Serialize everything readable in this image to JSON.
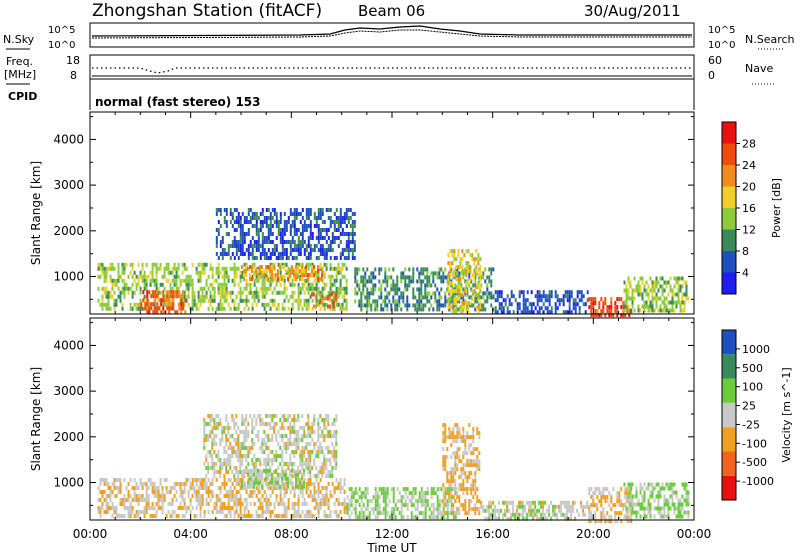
{
  "header": {
    "station": "Zhongshan Station (fitACF)",
    "beam": "Beam 06",
    "date": "30/Aug/2011"
  },
  "top_panels": {
    "nsky_label": "N.Sky",
    "nsearch_label": "N.Search",
    "noise_ticks_top": "10^5",
    "noise_ticks_bottom": "10^0",
    "freq_label_line1": "Freq.",
    "freq_label_line2": "[MHz]",
    "freq_ticks": [
      "18",
      "8"
    ],
    "nave_label": "Nave",
    "nave_ticks": [
      "60",
      "0"
    ],
    "cpid_label": "CPID",
    "cpid_text": "normal (fast stereo) 153"
  },
  "x_axis": {
    "label": "Time UT",
    "ticks": [
      "00:00",
      "04:00",
      "08:00",
      "12:00",
      "16:00",
      "20:00",
      "00:00"
    ]
  },
  "colors": {
    "power": [
      "#1e1ef0",
      "#2050c0",
      "#3a8a5a",
      "#8ccc3c",
      "#f0d028",
      "#f08c1e",
      "#f04a0e",
      "#e81010"
    ],
    "velocity": [
      "#e81010",
      "#f0641e",
      "#f0a01e",
      "#c8c8c8",
      "#6ccc3c",
      "#3a8a5a",
      "#2050c0"
    ]
  },
  "chart_data": [
    {
      "type": "heatmap",
      "title": "",
      "xlabel": "Time UT",
      "ylabel": "Slant Range [km]",
      "ylim": [
        180,
        4600
      ],
      "yticks": [
        "1000",
        "2000",
        "3000",
        "4000"
      ],
      "colorbar": {
        "label": "Power [dB]",
        "range": [
          0,
          32
        ],
        "ticks": [
          "4",
          "8",
          "12",
          "16",
          "20",
          "24",
          "28"
        ]
      },
      "regions": [
        {
          "t0": 0.3,
          "t1": 10.2,
          "r0": 250,
          "r1": 1300,
          "value": 14
        },
        {
          "t0": 5.0,
          "t1": 10.5,
          "r0": 1400,
          "r1": 2500,
          "value": 6
        },
        {
          "t0": 6.0,
          "t1": 9.2,
          "r0": 950,
          "r1": 1250,
          "value": 21
        },
        {
          "t0": 2.0,
          "t1": 3.8,
          "r0": 250,
          "r1": 700,
          "value": 25
        },
        {
          "t0": 8.7,
          "t1": 9.8,
          "r0": 350,
          "r1": 650,
          "value": 24
        },
        {
          "t0": 10.5,
          "t1": 16.0,
          "r0": 250,
          "r1": 1200,
          "value": 10
        },
        {
          "t0": 14.2,
          "t1": 15.5,
          "r0": 250,
          "r1": 1600,
          "value": 18
        },
        {
          "t0": 16.0,
          "t1": 19.8,
          "r0": 250,
          "r1": 700,
          "value": 6
        },
        {
          "t0": 19.8,
          "t1": 21.5,
          "r0": 180,
          "r1": 550,
          "value": 27
        },
        {
          "t0": 21.2,
          "t1": 23.8,
          "r0": 250,
          "r1": 1000,
          "value": 14
        }
      ]
    },
    {
      "type": "heatmap",
      "title": "",
      "xlabel": "Time UT",
      "ylabel": "Slant Range [km]",
      "ylim": [
        180,
        4600
      ],
      "yticks": [
        "1000",
        "2000",
        "3000",
        "4000"
      ],
      "colorbar": {
        "label": "Velocity [m s^-1]",
        "range": [
          -1500,
          1500
        ],
        "ticks": [
          "-1000",
          "-500",
          "-100",
          "-25",
          "25",
          "100",
          "500",
          "1000"
        ]
      },
      "regions": [
        {
          "t0": 0.3,
          "t1": 10.2,
          "r0": 250,
          "r1": 1100,
          "value": -150
        },
        {
          "t0": 4.5,
          "t1": 9.8,
          "r0": 1100,
          "r1": 2500,
          "value": 0
        },
        {
          "t0": 6.0,
          "t1": 8.5,
          "r0": 900,
          "r1": 1300,
          "value": 200
        },
        {
          "t0": 10.2,
          "t1": 14.5,
          "r0": 250,
          "r1": 900,
          "value": 300
        },
        {
          "t0": 14.0,
          "t1": 15.5,
          "r0": 300,
          "r1": 2300,
          "value": -300
        },
        {
          "t0": 15.5,
          "t1": 19.8,
          "r0": 200,
          "r1": 600,
          "value": 60
        },
        {
          "t0": 19.8,
          "t1": 21.5,
          "r0": 180,
          "r1": 900,
          "value": -200
        },
        {
          "t0": 21.2,
          "t1": 23.8,
          "r0": 250,
          "r1": 1000,
          "value": 250
        }
      ]
    }
  ]
}
